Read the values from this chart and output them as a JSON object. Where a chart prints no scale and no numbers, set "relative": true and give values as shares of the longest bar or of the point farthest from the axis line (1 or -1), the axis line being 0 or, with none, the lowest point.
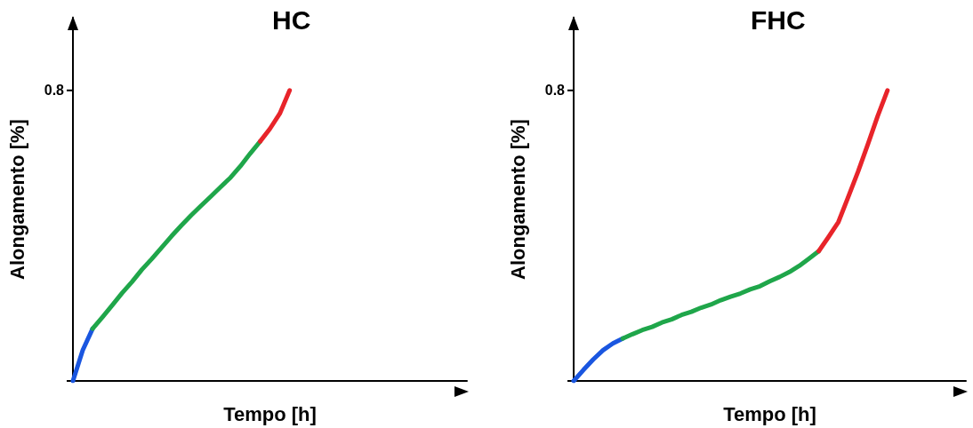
{
  "chart_data": [
    {
      "type": "line",
      "title": "HC",
      "xlabel": "Tempo [h]",
      "ylabel": "Alongamento [%]",
      "relative": true,
      "annotations": [
        "0.8"
      ],
      "categories": [
        null,
        null,
        null,
        null,
        null,
        null,
        null,
        null,
        null,
        null,
        null,
        null,
        null,
        null,
        null,
        null,
        null,
        null,
        null,
        null,
        null,
        null,
        null,
        null,
        null,
        null,
        null,
        null,
        null,
        null,
        null,
        null,
        null,
        null,
        null,
        null,
        null,
        null,
        null,
        null,
        null
      ],
      "series": [
        {
          "color": "#1a56e0",
          "values": [
            0,
            0.106,
            0.18,
            null,
            null,
            null,
            null,
            null,
            null,
            null,
            null,
            null,
            null,
            null,
            null,
            null,
            null,
            null,
            null,
            null,
            null,
            null,
            null,
            null,
            null,
            null,
            null,
            null,
            null,
            null,
            null,
            null,
            null,
            null,
            null,
            null,
            null,
            null,
            null,
            null,
            null
          ]
        },
        {
          "color": "#1fa64a",
          "values": [
            null,
            null,
            0.18,
            0.22,
            0.261,
            0.303,
            0.341,
            0.383,
            0.42,
            0.459,
            0.498,
            0.535,
            0.57,
            0.603,
            0.635,
            0.668,
            0.7,
            0.739,
            0.783,
            0.824,
            null,
            null,
            null,
            null,
            null,
            null,
            null,
            null,
            null,
            null,
            null,
            null,
            null,
            null,
            null,
            null,
            null,
            null,
            null,
            null,
            null
          ]
        },
        {
          "color": "#e8242a",
          "values": [
            null,
            null,
            null,
            null,
            null,
            null,
            null,
            null,
            null,
            null,
            null,
            null,
            null,
            null,
            null,
            null,
            null,
            null,
            null,
            0.824,
            0.868,
            0.92,
            1,
            null,
            null,
            null,
            null,
            null,
            null,
            null,
            null,
            null,
            null,
            null,
            null,
            null,
            null,
            null,
            null,
            null,
            null
          ]
        }
      ],
      "grid": false,
      "marker": "none",
      "line_style": "solid"
    },
    {
      "type": "line",
      "title": "FHC",
      "xlabel": "Tempo [h]",
      "ylabel": "Alongamento [%]",
      "relative": true,
      "annotations": [
        "0.8"
      ],
      "categories": [
        null,
        null,
        null,
        null,
        null,
        null,
        null,
        null,
        null,
        null,
        null,
        null,
        null,
        null,
        null,
        null,
        null,
        null,
        null,
        null,
        null,
        null,
        null,
        null,
        null,
        null,
        null,
        null,
        null,
        null,
        null,
        null,
        null,
        null,
        null,
        null,
        null,
        null,
        null,
        null,
        null
      ],
      "series": [
        {
          "color": "#1a56e0",
          "values": [
            0,
            0.038,
            0.074,
            0.106,
            0.129,
            0.146,
            null,
            null,
            null,
            null,
            null,
            null,
            null,
            null,
            null,
            null,
            null,
            null,
            null,
            null,
            null,
            null,
            null,
            null,
            null,
            null,
            null,
            null,
            null,
            null,
            null,
            null,
            null,
            null,
            null,
            null,
            null,
            null,
            null,
            null,
            null
          ]
        },
        {
          "color": "#1fa64a",
          "values": [
            null,
            null,
            null,
            null,
            null,
            0.146,
            0.161,
            0.175,
            0.186,
            0.201,
            0.212,
            0.227,
            0.238,
            0.252,
            0.263,
            0.278,
            0.29,
            0.301,
            0.315,
            0.326,
            0.343,
            0.358,
            0.375,
            0.396,
            0.421,
            0.447,
            null,
            null,
            null,
            null,
            null,
            null,
            null,
            null,
            null,
            null,
            null,
            null,
            null,
            null,
            null
          ]
        },
        {
          "color": "#e8242a",
          "values": [
            null,
            null,
            null,
            null,
            null,
            null,
            null,
            null,
            null,
            null,
            null,
            null,
            null,
            null,
            null,
            null,
            null,
            null,
            null,
            null,
            null,
            null,
            null,
            null,
            null,
            0.447,
            0.496,
            0.547,
            0.633,
            0.72,
            0.814,
            0.911,
            1,
            null,
            null,
            null,
            null,
            null,
            null,
            null,
            null
          ]
        }
      ],
      "grid": false,
      "marker": "none",
      "line_style": "solid"
    }
  ]
}
